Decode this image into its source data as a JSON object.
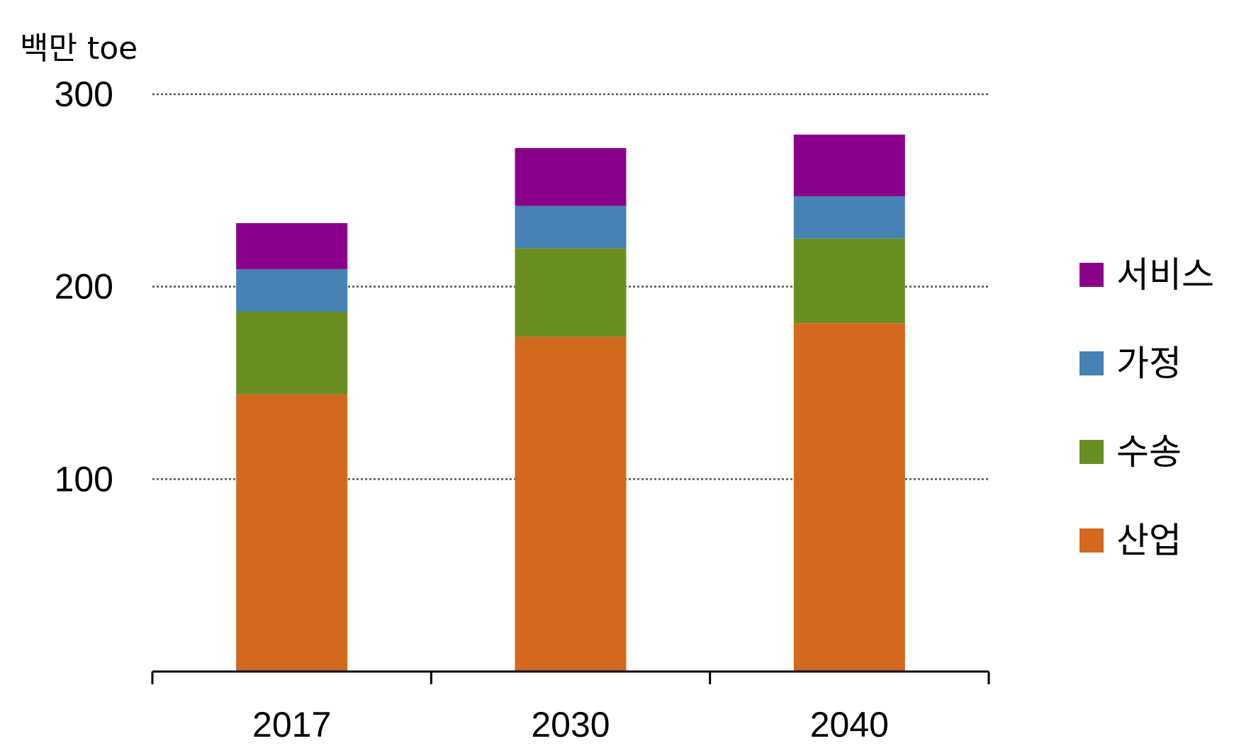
{
  "chart_data": {
    "type": "bar",
    "stacked": true,
    "unit_label": "백만 toe",
    "categories": [
      "2017",
      "2030",
      "2040"
    ],
    "series": [
      {
        "name": "산업",
        "color": "#D2691E",
        "values": [
          144,
          174,
          181
        ]
      },
      {
        "name": "수송",
        "color": "#6B8E23",
        "values": [
          43,
          46,
          44
        ]
      },
      {
        "name": "가정",
        "color": "#4682B4",
        "values": [
          22,
          22,
          22
        ]
      },
      {
        "name": "서비스",
        "color": "#8B008B",
        "values": [
          24,
          30,
          32
        ]
      }
    ],
    "y_ticks": [
      "100",
      "200",
      "300"
    ],
    "ylim": [
      0,
      300
    ],
    "grid": {
      "y": true,
      "style": "dotted",
      "color": "#555555"
    },
    "legend": {
      "position": "right",
      "order": [
        "서비스",
        "가정",
        "수송",
        "산업"
      ]
    }
  }
}
